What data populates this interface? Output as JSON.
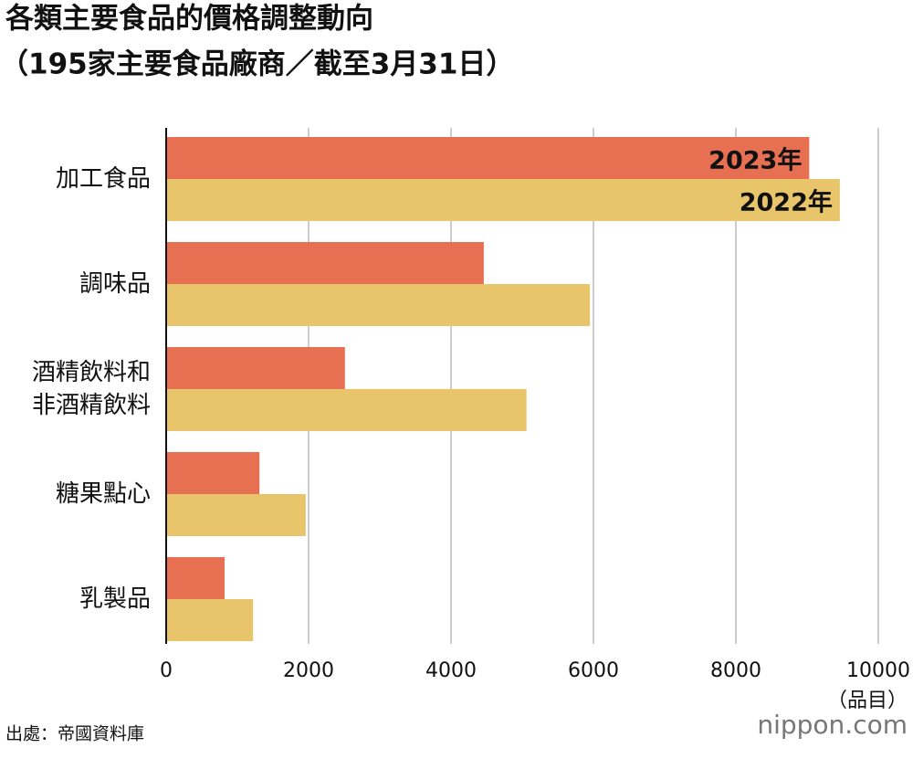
{
  "chart_data": {
    "type": "bar",
    "orientation": "horizontal",
    "title": "各類主要食品的價格調整動向",
    "subtitle": "（195家主要食品廠商／截至3月31日）",
    "categories": [
      "加工食品",
      "調味品",
      "酒精飲料和非酒精飲料",
      "糖果點心",
      "乳製品"
    ],
    "series": [
      {
        "name": "2023年",
        "color": "#e87052",
        "values": [
          9030,
          4460,
          2510,
          1310,
          820
        ]
      },
      {
        "name": "2022年",
        "color": "#e8c56a",
        "values": [
          9460,
          5950,
          5060,
          1960,
          1220
        ]
      }
    ],
    "xlim": [
      0,
      10000
    ],
    "xticks": [
      0,
      2000,
      4000,
      6000,
      8000,
      10000
    ],
    "x_unit": "（品目）",
    "grid": true,
    "source": "出處：帝國資料庫",
    "brand": "nippon.com"
  }
}
